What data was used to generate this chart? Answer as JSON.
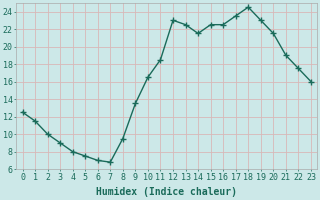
{
  "x": [
    0,
    1,
    2,
    3,
    4,
    5,
    6,
    7,
    8,
    9,
    10,
    11,
    12,
    13,
    14,
    15,
    16,
    17,
    18,
    19,
    20,
    21,
    22,
    23
  ],
  "y": [
    12.5,
    11.5,
    10.0,
    9.0,
    8.0,
    7.5,
    7.0,
    6.8,
    9.5,
    13.5,
    16.5,
    18.5,
    23.0,
    22.5,
    21.5,
    22.5,
    22.5,
    23.5,
    24.5,
    23.0,
    21.5,
    19.0,
    17.5,
    16.0
  ],
  "line_color": "#1a6b5a",
  "marker": "+",
  "marker_size": 4,
  "bg_color": "#cce8e8",
  "grid_color": "#d8b8b8",
  "xlabel": "Humidex (Indice chaleur)",
  "ylim": [
    6,
    25
  ],
  "xlim_min": -0.5,
  "xlim_max": 23.5,
  "yticks": [
    6,
    8,
    10,
    12,
    14,
    16,
    18,
    20,
    22,
    24
  ],
  "xticks": [
    0,
    1,
    2,
    3,
    4,
    5,
    6,
    7,
    8,
    9,
    10,
    11,
    12,
    13,
    14,
    15,
    16,
    17,
    18,
    19,
    20,
    21,
    22,
    23
  ],
  "xlabel_fontsize": 7,
  "tick_fontsize": 6,
  "linewidth": 1.0,
  "marker_linewidth": 1.0
}
